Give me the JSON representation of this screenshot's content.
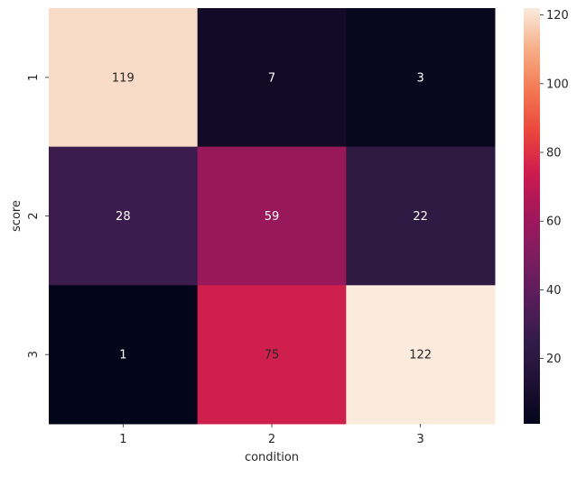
{
  "chart_data": {
    "type": "heatmap",
    "title": "",
    "xlabel": "condition",
    "ylabel": "score",
    "x_categories": [
      "1",
      "2",
      "3"
    ],
    "y_categories": [
      "1",
      "2",
      "3"
    ],
    "values": [
      [
        119,
        7,
        3
      ],
      [
        28,
        59,
        22
      ],
      [
        1,
        75,
        122
      ]
    ],
    "value_range": [
      1,
      122
    ],
    "colormap": "rocket",
    "annotations": true,
    "annotation_colors": {
      "light_text": "#ffffff",
      "dark_text": "#262626"
    },
    "colorbar": {
      "ticks": [
        20,
        40,
        60,
        80,
        100,
        120
      ],
      "position": "right"
    },
    "grid": false,
    "legend": "colorbar-right"
  }
}
